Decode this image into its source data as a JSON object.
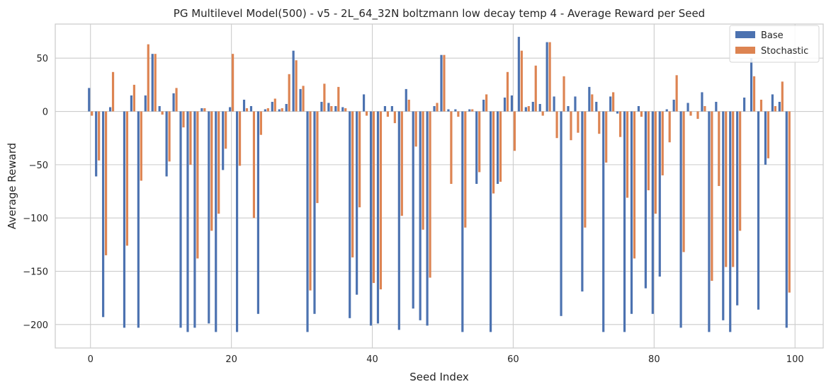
{
  "chart_data": {
    "type": "bar",
    "title": "PG Multilevel Model(500) - v5 - 2L_64_32N boltzmann low decay temp 4 - Average Reward per Seed",
    "xlabel": "Seed Index",
    "ylabel": "Average Reward",
    "xlim": [
      -5,
      104
    ],
    "ylim": [
      -222,
      82
    ],
    "xticks": [
      0,
      20,
      40,
      60,
      80,
      100
    ],
    "yticks": [
      50,
      0,
      -50,
      -100,
      -150,
      -200
    ],
    "grid": true,
    "legend_position": "top-right",
    "x": [
      0,
      1,
      2,
      3,
      4,
      5,
      6,
      7,
      8,
      9,
      10,
      11,
      12,
      13,
      14,
      15,
      16,
      17,
      18,
      19,
      20,
      21,
      22,
      23,
      24,
      25,
      26,
      27,
      28,
      29,
      30,
      31,
      32,
      33,
      34,
      35,
      36,
      37,
      38,
      39,
      40,
      41,
      42,
      43,
      44,
      45,
      46,
      47,
      48,
      49,
      50,
      51,
      52,
      53,
      54,
      55,
      56,
      57,
      58,
      59,
      60,
      61,
      62,
      63,
      64,
      65,
      66,
      67,
      68,
      69,
      70,
      71,
      72,
      73,
      74,
      75,
      76,
      77,
      78,
      79,
      80,
      81,
      82,
      83,
      84,
      85,
      86,
      87,
      88,
      89,
      90,
      91,
      92,
      93,
      94,
      95,
      96,
      97,
      98,
      99
    ],
    "series": [
      {
        "name": "Base",
        "color": "#4c72b0",
        "values": [
          22,
          -61,
          -193,
          4,
          0,
          -203,
          15,
          -203,
          15,
          54,
          5,
          -61,
          17,
          -203,
          -207,
          -203,
          3,
          -199,
          -207,
          -55,
          4,
          -207,
          11,
          5,
          -190,
          2,
          9,
          2,
          7,
          57,
          21,
          -207,
          -190,
          9,
          8,
          5,
          4,
          -194,
          -172,
          16,
          -201,
          -199,
          5,
          5,
          -205,
          21,
          -185,
          -196,
          -201,
          5,
          53,
          2,
          2,
          -207,
          2,
          -68,
          11,
          -207,
          -68,
          13,
          15,
          70,
          4,
          9,
          7,
          65,
          14,
          -192,
          5,
          14,
          -169,
          23,
          9,
          -207,
          14,
          -2,
          -207,
          -190,
          5,
          -166,
          -190,
          -155,
          2,
          11,
          -203,
          8,
          0,
          18,
          -207,
          9,
          -196,
          -207,
          -182,
          13,
          50,
          -186,
          -50,
          16,
          9,
          -203
        ]
      },
      {
        "name": "Stochastic",
        "color": "#dd8452",
        "values": [
          -4,
          -46,
          -135,
          37,
          0,
          -126,
          25,
          -65,
          63,
          54,
          -3,
          -47,
          22,
          -15,
          -50,
          -138,
          3,
          -112,
          -96,
          -35,
          54,
          -51,
          3,
          -100,
          -22,
          3,
          12,
          3,
          35,
          48,
          24,
          -168,
          -86,
          26,
          5,
          23,
          3,
          -137,
          -90,
          -4,
          -161,
          -167,
          -5,
          -11,
          -98,
          11,
          -33,
          -111,
          -156,
          8,
          53,
          -68,
          -5,
          -109,
          2,
          -57,
          16,
          -77,
          -66,
          37,
          -37,
          57,
          5,
          43,
          -4,
          65,
          -25,
          33,
          -27,
          -20,
          -109,
          16,
          -21,
          -48,
          18,
          -24,
          -81,
          -138,
          -5,
          -74,
          -96,
          -60,
          -29,
          34,
          -132,
          -4,
          -7,
          5,
          -159,
          -70,
          -146,
          -146,
          -112,
          0,
          33,
          11,
          -44,
          5,
          28,
          -170
        ]
      }
    ]
  }
}
